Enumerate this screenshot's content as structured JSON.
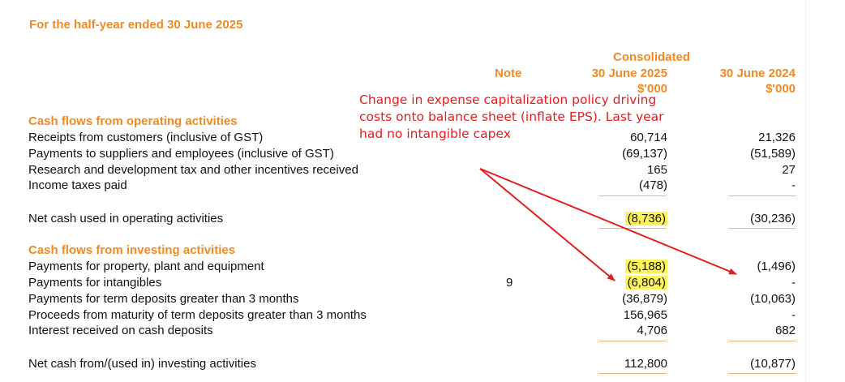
{
  "title": "For the half-year ended 30 June 2025",
  "header": {
    "consolidated": "Consolidated",
    "note": "Note",
    "col1_date": "30 June 2025",
    "col1_unit": "$'000",
    "col2_date": "30 June 2024",
    "col2_unit": "$'000"
  },
  "operating": {
    "heading": "Cash flows from operating activities",
    "rows": [
      {
        "label": "Receipts from customers (inclusive of GST)",
        "note": "",
        "v2025": "60,714",
        "v2024": "21,326"
      },
      {
        "label": "Payments to suppliers and employees (inclusive of GST)",
        "note": "",
        "v2025": "(69,137)",
        "v2024": "(51,589)"
      },
      {
        "label": "Research and development tax and other incentives received",
        "note": "",
        "v2025": "165",
        "v2024": "27"
      },
      {
        "label": "Income taxes paid",
        "note": "",
        "v2025": "(478)",
        "v2024": "-"
      }
    ],
    "total": {
      "label": "Net cash used in operating activities",
      "v2025": "(8,736)",
      "v2024": "(30,236)"
    }
  },
  "investing": {
    "heading": "Cash flows from investing activities",
    "rows": [
      {
        "label": "Payments for property, plant and equipment",
        "note": "",
        "v2025": "(5,188)",
        "v2024": "(1,496)"
      },
      {
        "label": "Payments for intangibles",
        "note": "9",
        "v2025": "(6,804)",
        "v2024": "-"
      },
      {
        "label": "Payments for term deposits greater than 3 months",
        "note": "",
        "v2025": "(36,879)",
        "v2024": "(10,063)"
      },
      {
        "label": "Proceeds from maturity of term deposits greater than 3 months",
        "note": "",
        "v2025": "156,965",
        "v2024": "-"
      },
      {
        "label": "Interest received on cash deposits",
        "note": "",
        "v2025": "4,706",
        "v2024": "682"
      }
    ],
    "total": {
      "label": "Net cash from/(used in) investing activities",
      "v2025": "112,800",
      "v2024": "(10,877)"
    }
  },
  "annotation": "Change in expense capitalization policy driving costs onto balance sheet (inflate EPS). Last year had no intangible capex",
  "colors": {
    "accent": "#f08a24",
    "highlight": "#fff35c",
    "annotation": "#e31e1e"
  }
}
